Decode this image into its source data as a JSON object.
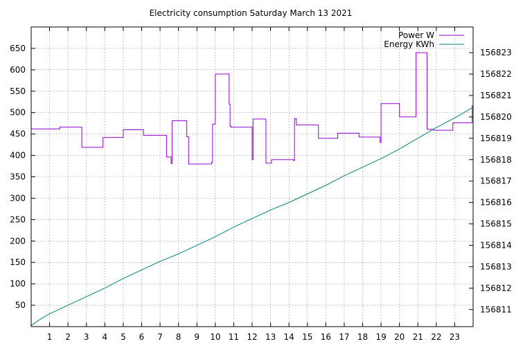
{
  "chart_data": {
    "type": "line",
    "title": "Electricity consumption Saturday March 13 2021",
    "xlabel": "",
    "ylabel": "",
    "y2label": "",
    "xlim": [
      0,
      24
    ],
    "ylim": [
      0,
      700
    ],
    "y2lim": [
      156810.2,
      156824.2
    ],
    "grid": true,
    "legend_position": "top-right",
    "x_ticks": [
      1,
      2,
      3,
      4,
      5,
      6,
      7,
      8,
      9,
      10,
      11,
      12,
      13,
      14,
      15,
      16,
      17,
      18,
      19,
      20,
      21,
      22,
      23
    ],
    "y_ticks": [
      50,
      100,
      150,
      200,
      250,
      300,
      350,
      400,
      450,
      500,
      550,
      600,
      650
    ],
    "y2_ticks": [
      156811,
      156812,
      156813,
      156814,
      156815,
      156816,
      156817,
      156818,
      156819,
      156820,
      156821,
      156822,
      156823
    ],
    "series": [
      {
        "name": "Power W",
        "axis": "left",
        "color": "#9400d3",
        "step": true,
        "x": [
          0,
          1.55,
          2.75,
          3.9,
          5.0,
          6.1,
          7.35,
          7.6,
          7.65,
          8.45,
          8.55,
          9.8,
          9.85,
          10.0,
          10.75,
          10.8,
          10.85,
          12.0,
          12.05,
          12.75,
          13.05,
          14.25,
          14.3,
          14.4,
          15.6,
          16.65,
          17.8,
          18.95,
          19.0,
          19.05,
          20.0,
          20.9,
          21.5,
          21.85,
          22.9,
          23.95,
          24.0
        ],
        "y": [
          462,
          466,
          419,
          442,
          460,
          447,
          396,
          381,
          481,
          444,
          380,
          384,
          473,
          590,
          520,
          468,
          466,
          390,
          485,
          382,
          390,
          388,
          486,
          471,
          440,
          452,
          443,
          430,
          521,
          521,
          490,
          640,
          461,
          459,
          476,
          516,
          516
        ]
      },
      {
        "name": "Energy KWh",
        "axis": "right",
        "color": "#008080",
        "step": false,
        "x": [
          0,
          0.5,
          1,
          2,
          3,
          4,
          5,
          6,
          7,
          8,
          9,
          10,
          11,
          12,
          13,
          14,
          15,
          16,
          17,
          18,
          19,
          20,
          21,
          22,
          23,
          24
        ],
        "y": [
          156810.25,
          156810.55,
          156810.8,
          156811.2,
          156811.6,
          156812.0,
          156812.45,
          156812.85,
          156813.25,
          156813.6,
          156814.0,
          156814.4,
          156814.85,
          156815.25,
          156815.65,
          156816.0,
          156816.4,
          156816.8,
          156817.25,
          156817.65,
          156818.05,
          156818.5,
          156819.0,
          156819.5,
          156819.95,
          156820.45
        ]
      }
    ]
  }
}
